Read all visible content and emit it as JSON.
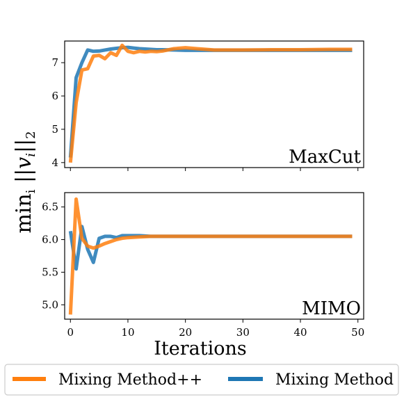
{
  "chart_data": [
    {
      "type": "line",
      "panel_label": "MaxCut",
      "xlim": [
        -1,
        51
      ],
      "ylim": [
        3.85,
        7.65
      ],
      "xticks": [
        0,
        10,
        20,
        30,
        40,
        50
      ],
      "xtick_labels_visible": false,
      "yticks": [
        4,
        5,
        6,
        7
      ],
      "series": [
        {
          "name": "Mixing Method",
          "color": "#1f77b4",
          "x": [
            0,
            1,
            2,
            3,
            4,
            5,
            6,
            7,
            8,
            9,
            10,
            11,
            12,
            13,
            14,
            15,
            16,
            18,
            20,
            25,
            30,
            35,
            40,
            45,
            49
          ],
          "y": [
            4.15,
            6.55,
            7.0,
            7.38,
            7.34,
            7.35,
            7.38,
            7.41,
            7.43,
            7.45,
            7.46,
            7.44,
            7.42,
            7.41,
            7.4,
            7.39,
            7.39,
            7.38,
            7.37,
            7.37,
            7.37,
            7.37,
            7.37,
            7.37,
            7.37
          ]
        },
        {
          "name": "Mixing Method++",
          "color": "#ff7f0e",
          "x": [
            0,
            1,
            2,
            3,
            4,
            5,
            6,
            7,
            8,
            9,
            10,
            11,
            12,
            13,
            14,
            15,
            16,
            18,
            20,
            22,
            25,
            30,
            35,
            40,
            45,
            49
          ],
          "y": [
            4.0,
            5.8,
            6.78,
            6.82,
            7.2,
            7.22,
            7.12,
            7.3,
            7.22,
            7.52,
            7.34,
            7.3,
            7.34,
            7.32,
            7.34,
            7.33,
            7.35,
            7.42,
            7.45,
            7.42,
            7.38,
            7.38,
            7.39,
            7.39,
            7.4,
            7.4
          ]
        }
      ]
    },
    {
      "type": "line",
      "panel_label": "MIMO",
      "xlabel": "Iterations",
      "xlim": [
        -1,
        51
      ],
      "ylim": [
        4.78,
        6.72
      ],
      "xticks": [
        0,
        10,
        20,
        30,
        40,
        50
      ],
      "xtick_labels": [
        "0",
        "10",
        "20",
        "30",
        "40",
        "50"
      ],
      "yticks": [
        5.0,
        5.5,
        6.0,
        6.5
      ],
      "ytick_labels": [
        "5.0",
        "5.5",
        "6.0",
        "6.5"
      ],
      "series": [
        {
          "name": "Mixing Method",
          "color": "#1f77b4",
          "x": [
            0,
            1,
            2,
            3,
            4,
            5,
            6,
            7,
            8,
            9,
            10,
            12,
            14,
            16,
            20,
            25,
            30,
            35,
            40,
            45,
            49
          ],
          "y": [
            6.13,
            5.55,
            6.2,
            5.85,
            5.65,
            6.02,
            6.05,
            6.05,
            6.03,
            6.06,
            6.06,
            6.06,
            6.05,
            6.05,
            6.05,
            6.05,
            6.05,
            6.05,
            6.05,
            6.05,
            6.05
          ]
        },
        {
          "name": "Mixing Method++",
          "color": "#ff7f0e",
          "x": [
            0,
            1,
            2,
            3,
            4,
            5,
            6,
            7,
            8,
            9,
            10,
            12,
            14,
            16,
            20,
            25,
            30,
            35,
            40,
            45,
            49
          ],
          "y": [
            4.85,
            6.62,
            6.02,
            5.9,
            5.87,
            5.9,
            5.94,
            5.97,
            6.0,
            6.02,
            6.03,
            6.04,
            6.05,
            6.05,
            6.05,
            6.05,
            6.05,
            6.05,
            6.05,
            6.05,
            6.05
          ]
        }
      ]
    }
  ],
  "shared_ylabel": "min_i ||v_i||_2",
  "legend": {
    "placement": "bottom",
    "entries": [
      {
        "label": "Mixing Method++",
        "color": "#ff7f0e"
      },
      {
        "label": "Mixing Method",
        "color": "#1f77b4"
      }
    ]
  }
}
